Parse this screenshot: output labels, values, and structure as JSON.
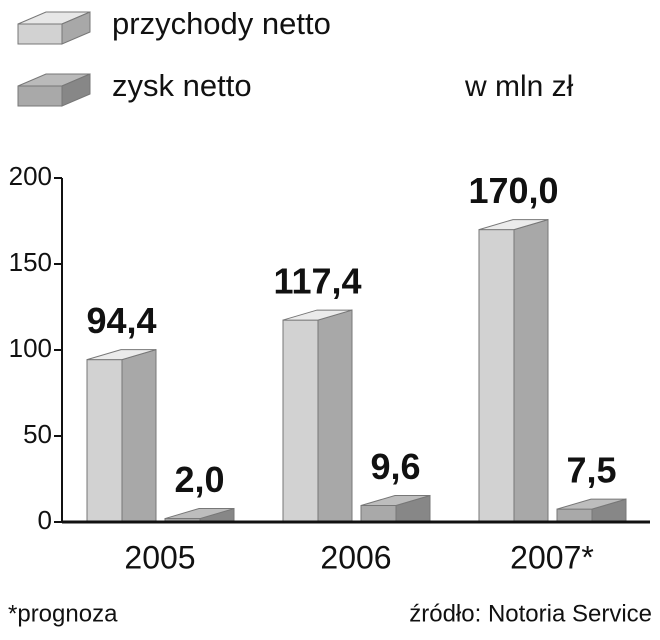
{
  "chart_data": {
    "type": "bar",
    "unit_label": "w mln zł",
    "note": "*prognoza",
    "source": "źródło: Notoria Service",
    "categories": [
      "2005",
      "2006",
      "2007*"
    ],
    "series": [
      {
        "name": "przychody netto",
        "color": "#d2d2d2",
        "values": [
          94.4,
          117.4,
          170.0
        ],
        "value_labels": [
          "94,4",
          "117,4",
          "170,0"
        ]
      },
      {
        "name": "zysk netto",
        "color": "#a9a9a9",
        "values": [
          2.0,
          9.6,
          7.5
        ],
        "value_labels": [
          "2,0",
          "9,6",
          "7,5"
        ]
      }
    ],
    "ylim": [
      0,
      200
    ],
    "yticks": [
      0,
      50,
      100,
      150,
      200
    ],
    "grid": false
  }
}
